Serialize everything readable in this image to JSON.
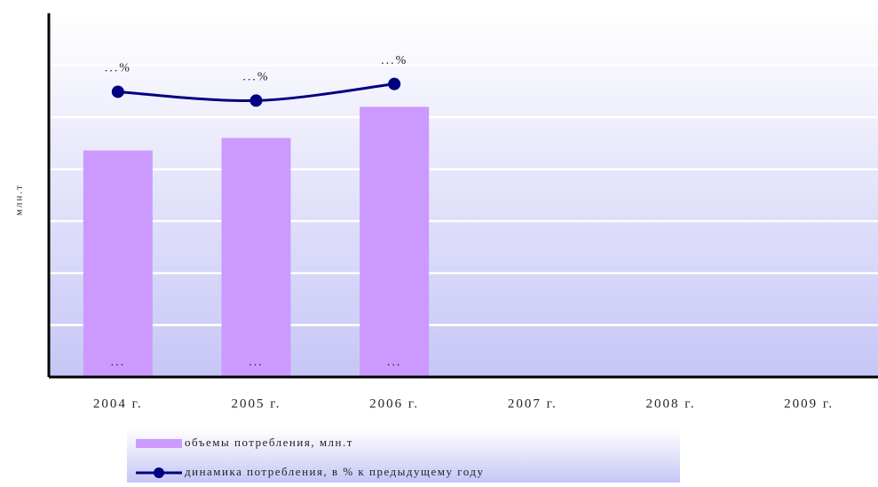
{
  "chart_data": {
    "type": "bar",
    "y_label": "млн.т",
    "categories": [
      "2004 г.",
      "2005 г.",
      "2006 г.",
      "2007 г.",
      "2008 г.",
      "2009 г."
    ],
    "series": [
      {
        "name": "объемы потребления, млн.т",
        "type": "bar",
        "color": "#cc99ff",
        "values": [
          4.36,
          4.6,
          5.2,
          null,
          null,
          null
        ],
        "value_labels": [
          "...",
          "...",
          "...",
          null,
          null,
          null
        ]
      },
      {
        "name": "динамика потребления, в % к предыдущему году",
        "type": "line",
        "color": "#000080",
        "values": [
          5.49,
          5.32,
          5.64,
          null,
          null,
          null
        ],
        "value_labels": [
          "...%",
          "...%",
          "...%",
          null,
          null,
          null
        ]
      }
    ],
    "ylim": [
      0,
      7
    ],
    "yticks": [
      1,
      2,
      3,
      4,
      5,
      6
    ],
    "grid": true,
    "legend": "bottom"
  }
}
